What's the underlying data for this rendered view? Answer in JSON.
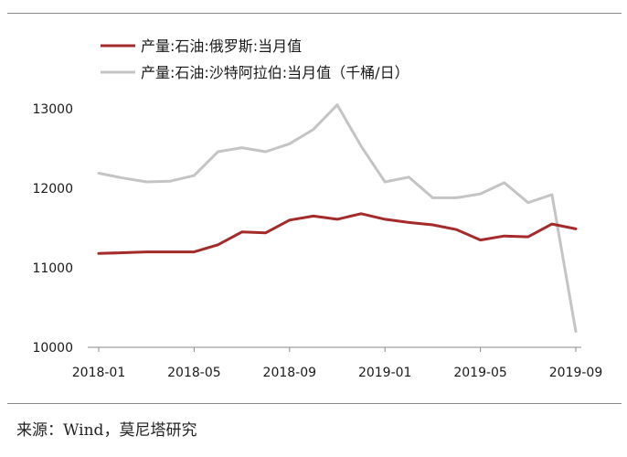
{
  "chart_data": {
    "type": "line",
    "x": [
      "2018-01",
      "2018-02",
      "2018-03",
      "2018-04",
      "2018-05",
      "2018-06",
      "2018-07",
      "2018-08",
      "2018-09",
      "2018-10",
      "2018-11",
      "2018-12",
      "2019-01",
      "2019-02",
      "2019-03",
      "2019-04",
      "2019-05",
      "2019-06",
      "2019-07",
      "2019-08",
      "2019-09"
    ],
    "xticks": [
      "2018-01",
      "2018-05",
      "2018-09",
      "2019-01",
      "2019-05",
      "2019-09"
    ],
    "ylim": [
      10000,
      13000
    ],
    "yticks": [
      10000,
      11000,
      12000,
      13000
    ],
    "series": [
      {
        "name": "产量:石油:俄罗斯:当月值",
        "color": "#a52a2a",
        "values": [
          11180,
          11190,
          11200,
          11200,
          11200,
          11290,
          11450,
          11440,
          11600,
          11650,
          11610,
          11680,
          11610,
          11570,
          11540,
          11480,
          11350,
          11400,
          11390,
          11550,
          11490
        ]
      },
      {
        "name": "产量:石油:沙特阿拉伯:当月值（千桶/日）",
        "color": "#c4c4c4",
        "values": [
          12190,
          12130,
          12080,
          12090,
          12160,
          12460,
          12510,
          12460,
          12560,
          12740,
          13050,
          12530,
          12080,
          12140,
          11880,
          11880,
          11930,
          12070,
          11820,
          11920,
          10200
        ]
      }
    ],
    "grid": false,
    "legend": "top-left"
  },
  "source": "来源：Wind，莫尼塔研究"
}
